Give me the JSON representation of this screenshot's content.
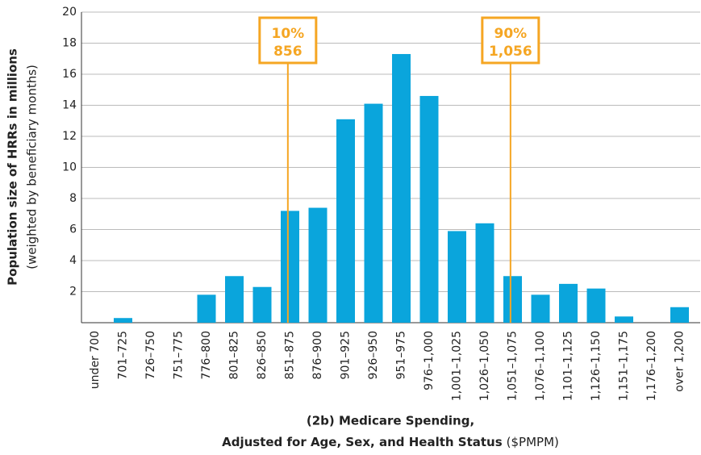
{
  "chart_data": {
    "type": "bar",
    "xlabel": [
      "(2b) Medicare Spending,",
      "Adjusted for Age, Sex, and Health Status"
    ],
    "xlabel_unit": "($PMPM)",
    "ylabel": "Population size of HRRs in millions",
    "ylabel_sub": "(weighted by beneficiary months)",
    "categories": [
      "under 700",
      "701–725",
      "726–750",
      "751–775",
      "776–800",
      "801–825",
      "826–850",
      "851–875",
      "876–900",
      "901–925",
      "926–950",
      "951–975",
      "976–1,000",
      "1,001–1,025",
      "1,026–1,050",
      "1,051–1,075",
      "1,076–1,100",
      "1,101–1,125",
      "1,126–1,150",
      "1,151–1,175",
      "1,176–1,200",
      "over 1,200"
    ],
    "values": [
      0,
      0.3,
      0,
      0,
      1.8,
      3.0,
      2.3,
      7.2,
      7.4,
      13.1,
      14.1,
      17.3,
      14.6,
      5.9,
      6.4,
      3.0,
      1.8,
      2.5,
      2.2,
      0.4,
      0,
      1.0
    ],
    "color": "#0aa5dc",
    "ylim": [
      0,
      20
    ],
    "yticks": [
      2,
      4,
      6,
      8,
      10,
      12,
      14,
      16,
      18,
      20
    ],
    "grid": true,
    "annotation_color": "#f5a623",
    "annotations": [
      {
        "text": "10%",
        "x": 856
      },
      {
        "text": "90%",
        "x": 1056,
        "x_label": "1,056"
      }
    ]
  }
}
